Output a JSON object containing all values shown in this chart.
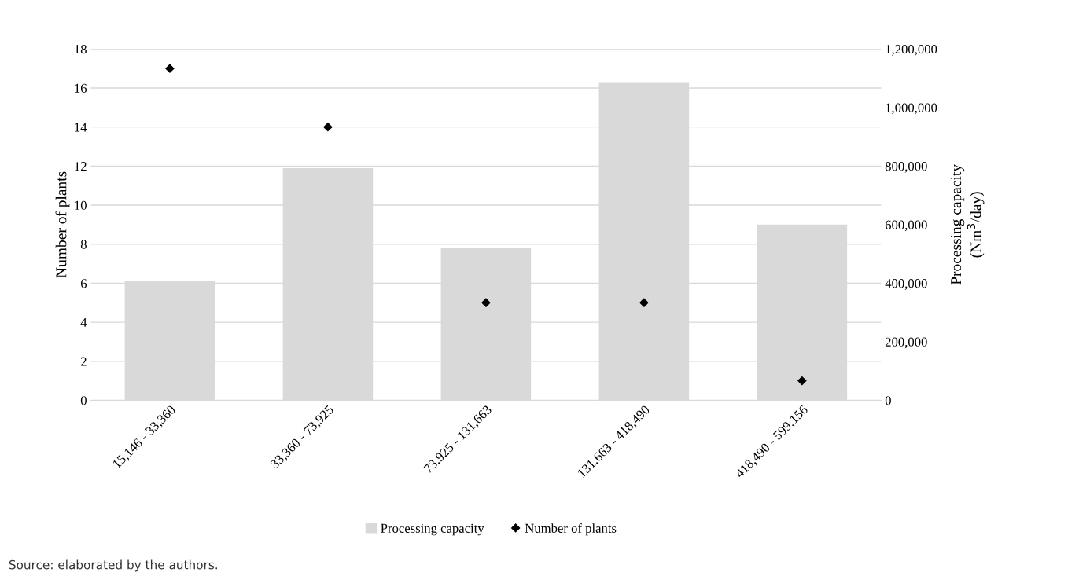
{
  "chart_data": {
    "type": "bar",
    "categories": [
      "15,146 - 33,360",
      "33,360 - 73,925",
      "73,925 - 131,663",
      "131,663 - 418,490",
      "418,490 - 599,156"
    ],
    "series": [
      {
        "name": "Processing capacity",
        "axis": "y2",
        "color": "#d9d9d9",
        "values": [
          407000,
          793000,
          520000,
          1087000,
          600000
        ]
      },
      {
        "name": "Number of plants",
        "type": "scatter",
        "axis": "y",
        "color": "#000000",
        "marker": "diamond",
        "values": [
          17,
          14,
          5,
          5,
          1
        ]
      }
    ],
    "ylabel": "Number of plants",
    "y2label": "Processing capacity\n(Nm$^{3}$/day)",
    "ylim": [
      0,
      18
    ],
    "yticks": [
      0,
      2,
      4,
      6,
      8,
      10,
      12,
      14,
      16,
      18
    ],
    "y2lim": [
      0,
      1200000
    ],
    "y2ticks": [
      {
        "value": 0,
        "label": "0"
      },
      {
        "value": 200000,
        "label": "200,000"
      },
      {
        "value": 400000,
        "label": "400,000"
      },
      {
        "value": 600000,
        "label": "600,000"
      },
      {
        "value": 800000,
        "label": "800,000"
      },
      {
        "value": 1000000,
        "label": "1,000,000"
      },
      {
        "value": 1200000,
        "label": "1,200,000"
      }
    ],
    "grid": "y",
    "legend": "bottom",
    "annotations": [
      "Source: elaborated by the authors."
    ]
  }
}
